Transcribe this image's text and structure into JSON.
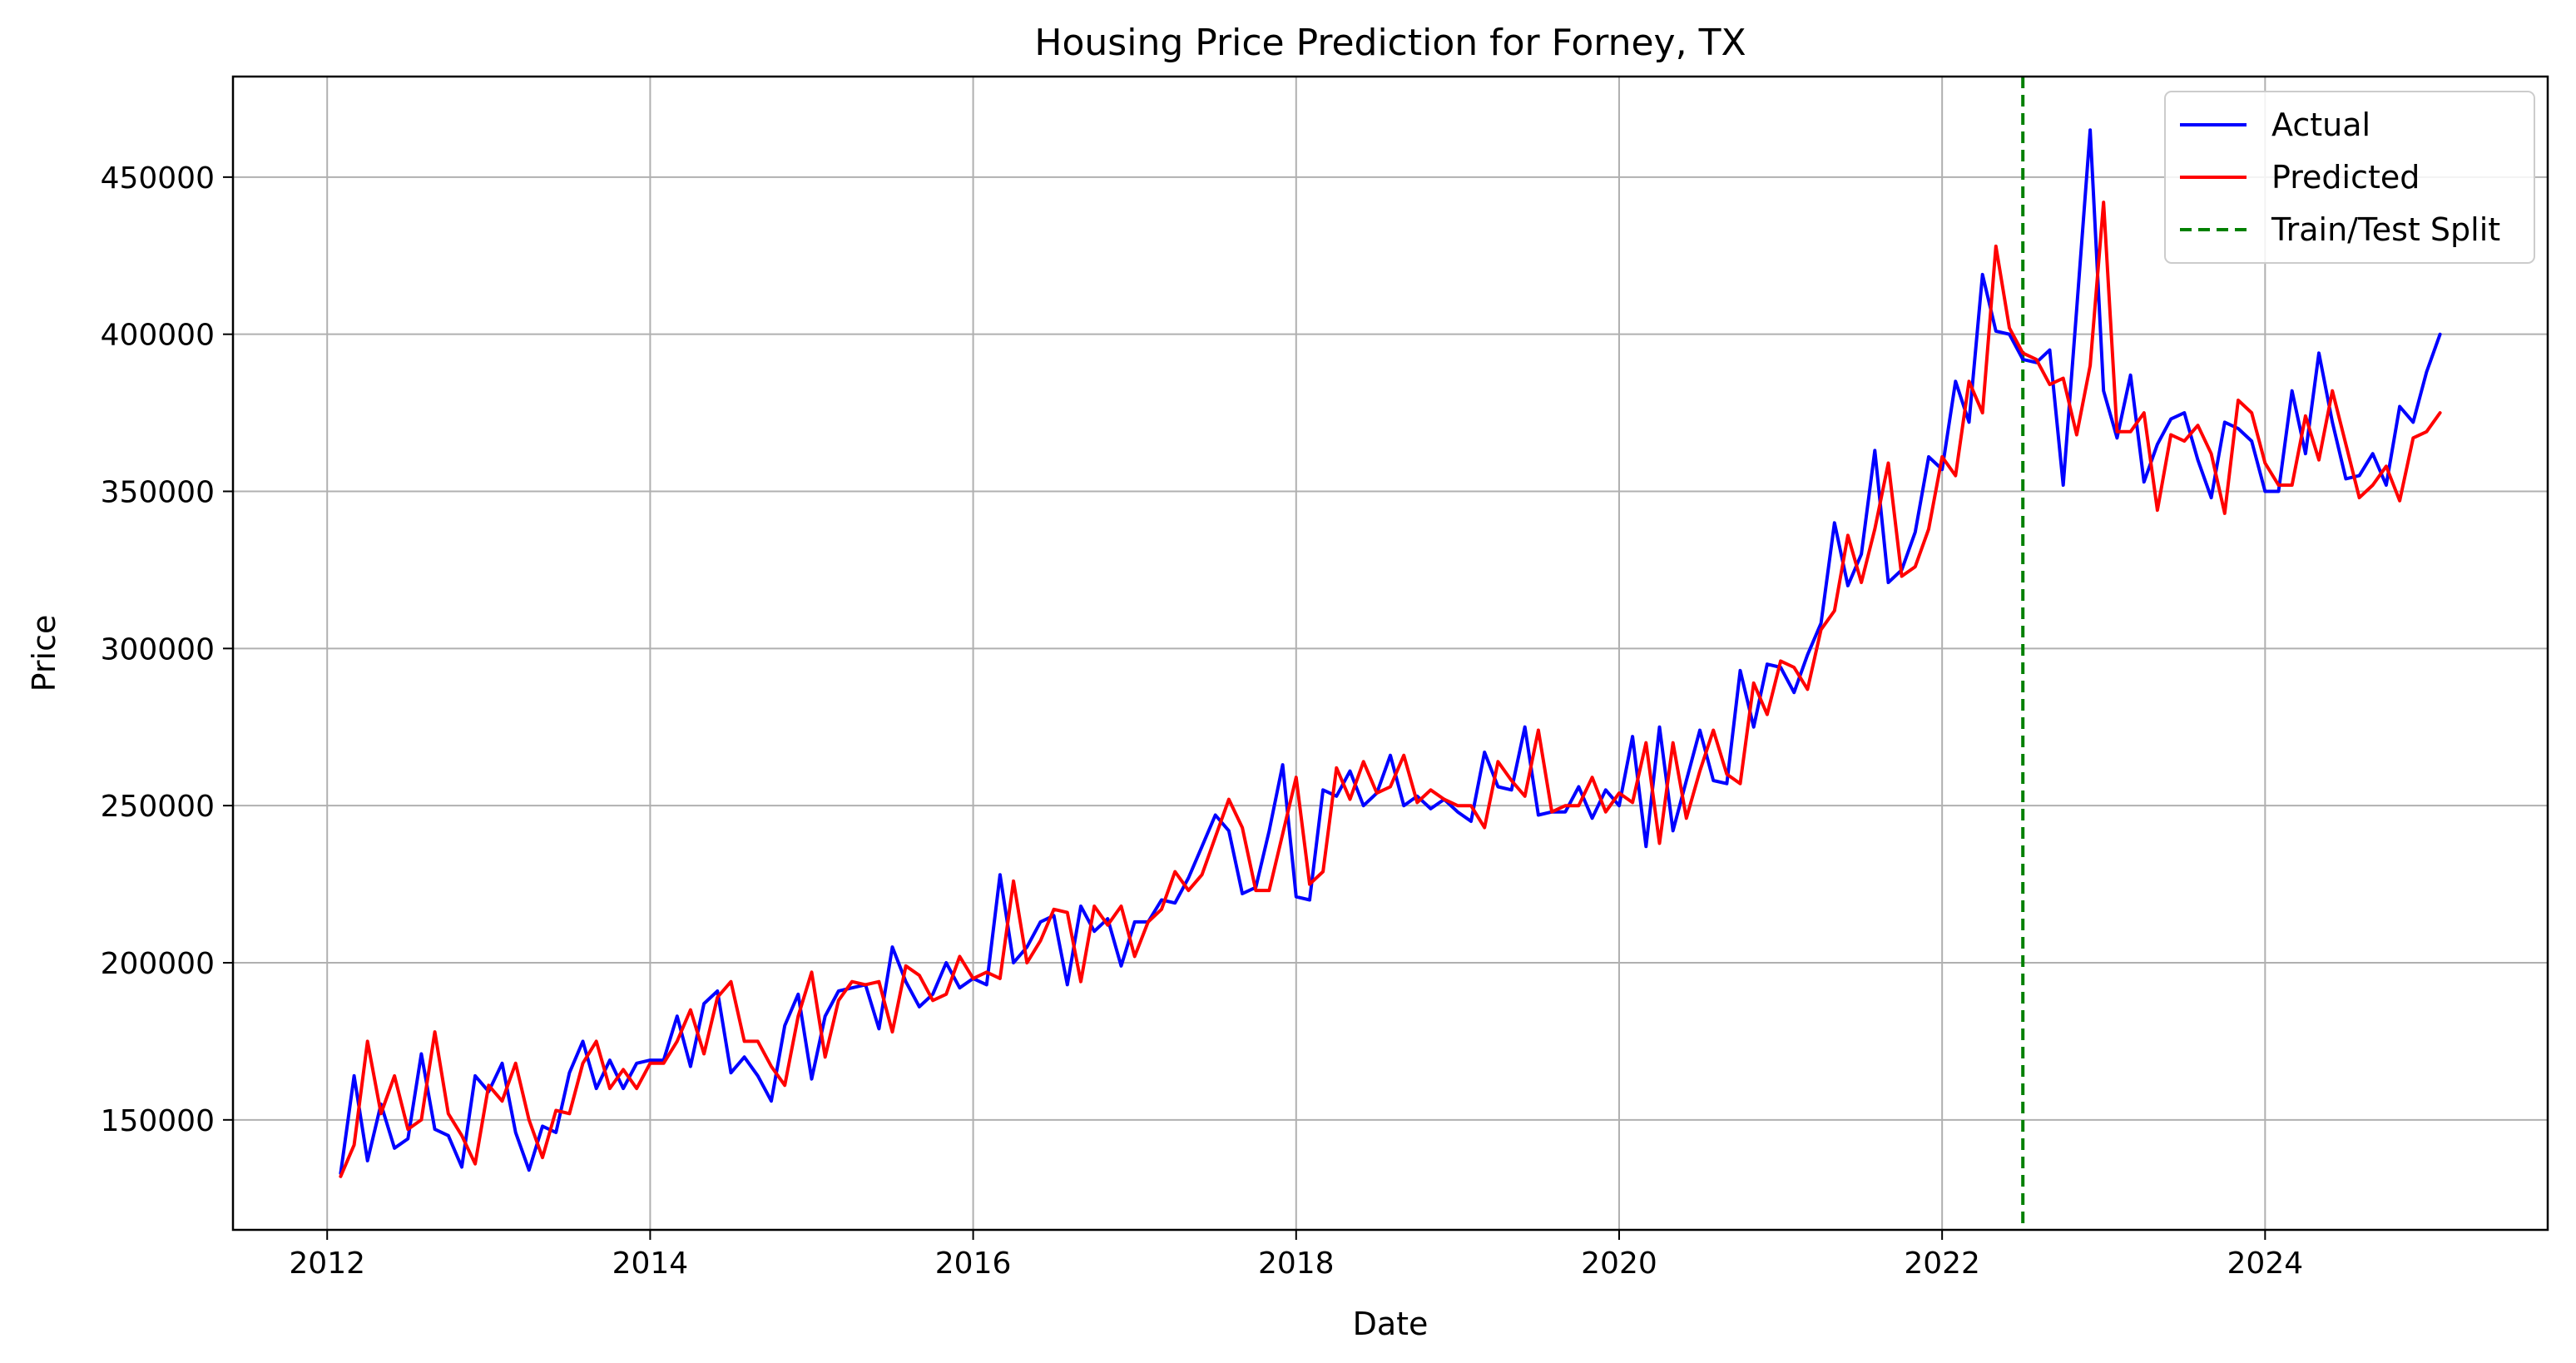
{
  "chart_data": {
    "type": "line",
    "title": "Housing Price Prediction for Forney, TX",
    "xlabel": "Date",
    "ylabel": "Price",
    "xlim": [
      "2011-06-01",
      "2025-10-01"
    ],
    "ylim": [
      115000,
      482000
    ],
    "x_ticks": [
      "2012",
      "2014",
      "2016",
      "2018",
      "2020",
      "2022",
      "2024"
    ],
    "y_ticks": [
      "150000",
      "200000",
      "250000",
      "300000",
      "350000",
      "400000",
      "450000"
    ],
    "grid": true,
    "legend_position": "top-right",
    "split_date": "2022-07-01",
    "x": [
      "2012-02",
      "2012-03",
      "2012-04",
      "2012-05",
      "2012-06",
      "2012-07",
      "2012-08",
      "2012-09",
      "2012-10",
      "2012-11",
      "2012-12",
      "2013-01",
      "2013-02",
      "2013-03",
      "2013-04",
      "2013-05",
      "2013-06",
      "2013-07",
      "2013-08",
      "2013-09",
      "2013-10",
      "2013-11",
      "2013-12",
      "2014-01",
      "2014-02",
      "2014-03",
      "2014-04",
      "2014-05",
      "2014-06",
      "2014-07",
      "2014-08",
      "2014-09",
      "2014-10",
      "2014-11",
      "2014-12",
      "2015-01",
      "2015-02",
      "2015-03",
      "2015-04",
      "2015-05",
      "2015-06",
      "2015-07",
      "2015-08",
      "2015-09",
      "2015-10",
      "2015-11",
      "2015-12",
      "2016-01",
      "2016-02",
      "2016-03",
      "2016-04",
      "2016-05",
      "2016-06",
      "2016-07",
      "2016-08",
      "2016-09",
      "2016-10",
      "2016-11",
      "2016-12",
      "2017-01",
      "2017-02",
      "2017-03",
      "2017-04",
      "2017-05",
      "2017-06",
      "2017-07",
      "2017-08",
      "2017-09",
      "2017-10",
      "2017-11",
      "2017-12",
      "2018-01",
      "2018-02",
      "2018-03",
      "2018-04",
      "2018-05",
      "2018-06",
      "2018-07",
      "2018-08",
      "2018-09",
      "2018-10",
      "2018-11",
      "2018-12",
      "2019-01",
      "2019-02",
      "2019-03",
      "2019-04",
      "2019-05",
      "2019-06",
      "2019-07",
      "2019-08",
      "2019-09",
      "2019-10",
      "2019-11",
      "2019-12",
      "2020-01",
      "2020-02",
      "2020-03",
      "2020-04",
      "2020-05",
      "2020-06",
      "2020-07",
      "2020-08",
      "2020-09",
      "2020-10",
      "2020-11",
      "2020-12",
      "2021-01",
      "2021-02",
      "2021-03",
      "2021-04",
      "2021-05",
      "2021-06",
      "2021-07",
      "2021-08",
      "2021-09",
      "2021-10",
      "2021-11",
      "2021-12",
      "2022-01",
      "2022-02",
      "2022-03",
      "2022-04",
      "2022-05",
      "2022-06",
      "2022-07",
      "2022-08",
      "2022-09",
      "2022-10",
      "2022-11",
      "2022-12",
      "2023-01",
      "2023-02",
      "2023-03",
      "2023-04",
      "2023-05",
      "2023-06",
      "2023-07",
      "2023-08",
      "2023-09",
      "2023-10",
      "2023-11",
      "2023-12",
      "2024-01",
      "2024-02",
      "2024-03",
      "2024-04",
      "2024-05",
      "2024-06",
      "2024-07",
      "2024-08",
      "2024-09",
      "2024-10",
      "2024-11",
      "2024-12",
      "2025-01",
      "2025-02"
    ],
    "series": [
      {
        "name": "Actual",
        "color": "#0000ff",
        "values": [
          133000,
          164000,
          137000,
          155000,
          141000,
          144000,
          171000,
          147000,
          145000,
          135000,
          164000,
          159000,
          168000,
          146000,
          134000,
          148000,
          146000,
          165000,
          175000,
          160000,
          169000,
          160000,
          168000,
          169000,
          169000,
          183000,
          167000,
          187000,
          191000,
          165000,
          170000,
          164000,
          156000,
          180000,
          190000,
          163000,
          183000,
          191000,
          192000,
          193000,
          179000,
          205000,
          194000,
          186000,
          190000,
          200000,
          192000,
          195000,
          193000,
          228000,
          200000,
          205000,
          213000,
          215000,
          193000,
          218000,
          210000,
          214000,
          199000,
          213000,
          213000,
          220000,
          219000,
          227000,
          237000,
          247000,
          242000,
          222000,
          224000,
          242000,
          263000,
          221000,
          220000,
          255000,
          253000,
          261000,
          250000,
          254000,
          266000,
          250000,
          253000,
          249000,
          252000,
          248000,
          245000,
          267000,
          256000,
          255000,
          275000,
          247000,
          248000,
          248000,
          256000,
          246000,
          255000,
          250000,
          272000,
          237000,
          275000,
          242000,
          258000,
          274000,
          258000,
          257000,
          293000,
          275000,
          295000,
          294000,
          286000,
          298000,
          308000,
          340000,
          320000,
          330000,
          363000,
          321000,
          325000,
          337000,
          361000,
          357000,
          385000,
          372000,
          419000,
          401000,
          400000,
          392000,
          391000,
          395000,
          352000,
          408000,
          465000,
          382000,
          367000,
          387000,
          353000,
          365000,
          373000,
          375000,
          360000,
          348000,
          372000,
          370000,
          366000,
          350000,
          350000,
          382000,
          362000,
          394000,
          372000,
          354000,
          355000,
          362000,
          352000,
          377000,
          372000,
          388000,
          400000
        ]
      },
      {
        "name": "Predicted",
        "color": "#ff0000",
        "values": [
          132000,
          142000,
          175000,
          152000,
          164000,
          147000,
          150000,
          178000,
          152000,
          145000,
          136000,
          161000,
          156000,
          168000,
          150000,
          138000,
          153000,
          152000,
          168000,
          175000,
          160000,
          166000,
          160000,
          168000,
          168000,
          175000,
          185000,
          171000,
          189000,
          194000,
          175000,
          175000,
          167000,
          161000,
          183000,
          197000,
          170000,
          188000,
          194000,
          193000,
          194000,
          178000,
          199000,
          196000,
          188000,
          190000,
          202000,
          195000,
          197000,
          195000,
          226000,
          200000,
          207000,
          217000,
          216000,
          194000,
          218000,
          212000,
          218000,
          202000,
          213000,
          217000,
          229000,
          223000,
          228000,
          240000,
          252000,
          243000,
          223000,
          223000,
          241000,
          259000,
          225000,
          229000,
          262000,
          252000,
          264000,
          254000,
          256000,
          266000,
          251000,
          255000,
          252000,
          250000,
          250000,
          243000,
          264000,
          258000,
          253000,
          274000,
          248000,
          250000,
          250000,
          259000,
          248000,
          254000,
          251000,
          270000,
          238000,
          270000,
          246000,
          261000,
          274000,
          260000,
          257000,
          289000,
          279000,
          296000,
          294000,
          287000,
          306000,
          312000,
          336000,
          321000,
          338000,
          359000,
          323000,
          326000,
          338000,
          361000,
          355000,
          385000,
          375000,
          428000,
          402000,
          394000,
          392000,
          384000,
          386000,
          368000,
          390000,
          442000,
          369000,
          369000,
          375000,
          344000,
          368000,
          366000,
          371000,
          362000,
          343000,
          379000,
          375000,
          359000,
          352000,
          352000,
          374000,
          360000,
          382000,
          365000,
          348000,
          352000,
          358000,
          347000,
          367000,
          369000,
          375000
        ]
      }
    ]
  }
}
